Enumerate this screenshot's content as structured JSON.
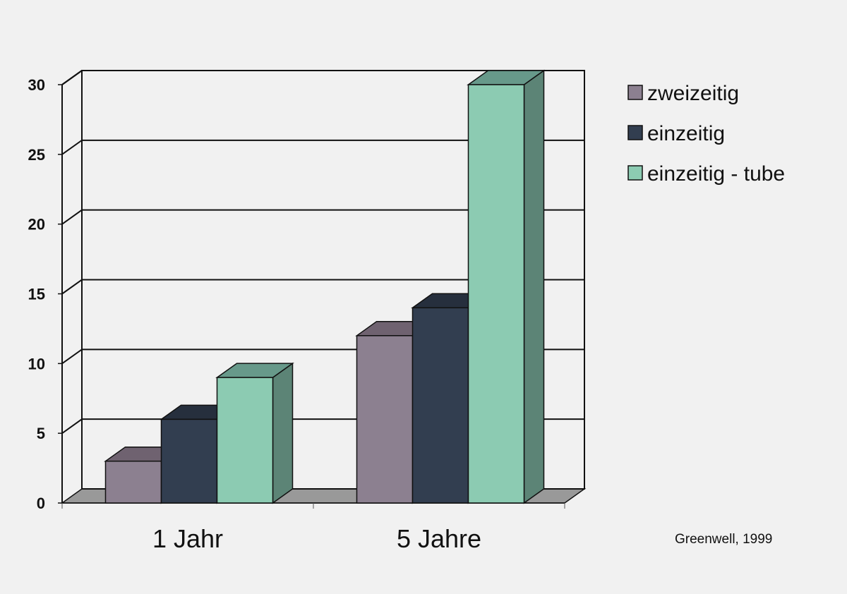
{
  "chart_data": {
    "type": "bar",
    "categories": [
      "1 Jahr",
      "5 Jahre"
    ],
    "series": [
      {
        "name": "zweizeitig",
        "values": [
          3,
          12
        ],
        "color": "#8c8090",
        "top_color": "#6f6270",
        "side_color": "#6f6270"
      },
      {
        "name": "einzeitig",
        "values": [
          6,
          14
        ],
        "color": "#323e50",
        "top_color": "#262f3d",
        "side_color": "#262f3d"
      },
      {
        "name": "einzeitig - tube",
        "values": [
          9,
          30
        ],
        "color": "#8ccbb2",
        "top_color": "#67998a",
        "side_color": "#5c8476"
      }
    ],
    "y_ticks": [
      "0",
      "5",
      "10",
      "15",
      "20",
      "25",
      "30"
    ],
    "ylim": [
      0,
      30
    ],
    "grid": true,
    "legend_position": "top-right",
    "three_d": true,
    "floor_color": "#999999",
    "source": "Greenwell, 1999"
  }
}
